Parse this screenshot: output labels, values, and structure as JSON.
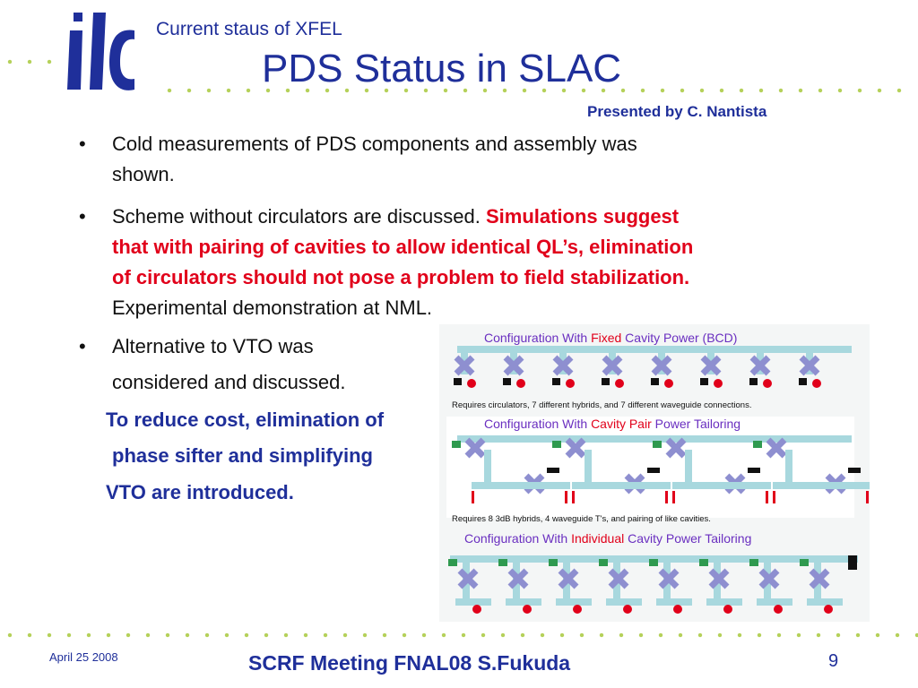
{
  "header": {
    "subtitle": "Current staus of XFEL",
    "title": "PDS Status in SLAC",
    "presenter": "Presented by C. Nantista"
  },
  "logo": {
    "name": "ilc-logo-icon",
    "color": "#1f2f9a"
  },
  "bullets": [
    {
      "marker": "•",
      "lines": [
        "Cold measurements of PDS components and assembly was",
        "shown."
      ]
    },
    {
      "marker": "•",
      "lines": [
        "Scheme without circulators are discussed. ",
        "Simulations suggest",
        "that with pairing of cavities to allow identical QL’s, elimination",
        "of circulators should not pose a problem to field stabilization.",
        "Experimental demonstration at NML."
      ]
    },
    {
      "marker": "•",
      "lines": [
        "Alternative to VTO was",
        "considered and discussed."
      ]
    }
  ],
  "highlight": [
    "To reduce cost, elimination of",
    "phase sifter and simplifying",
    "VTO are introduced."
  ],
  "figure": {
    "panels": [
      {
        "pre": "Configuration With ",
        "key": "Fixed",
        "post": " Cavity Power (BCD)",
        "note": "Requires circulators, 7 different hybrids, and 7 different waveguide connections."
      },
      {
        "pre": "Configuration With ",
        "key": "Cavity Pair",
        "post": " Power Tailoring",
        "note": "Requires 8 3dB hybrids, 4 waveguide T's, and pairing of like cavities."
      },
      {
        "pre": "Configuration With ",
        "key": "Individual",
        "post": " Cavity Power Tailoring",
        "note": ""
      }
    ],
    "colors": {
      "title": "#6a2fc0",
      "key": "#e1001a",
      "waveguide": "#a8d8de",
      "hybrid": "#8e8fd0",
      "load": "#e1001a",
      "circulator": "#111111",
      "phase": "#2f9a4f"
    }
  },
  "footer": {
    "date": "April 25 2008",
    "text": "SCRF Meeting FNAL08  S.Fukuda",
    "page": "9"
  },
  "colors": {
    "navy": "#1f2f9a",
    "red": "#e1001a",
    "dots": "#b5d15a"
  }
}
